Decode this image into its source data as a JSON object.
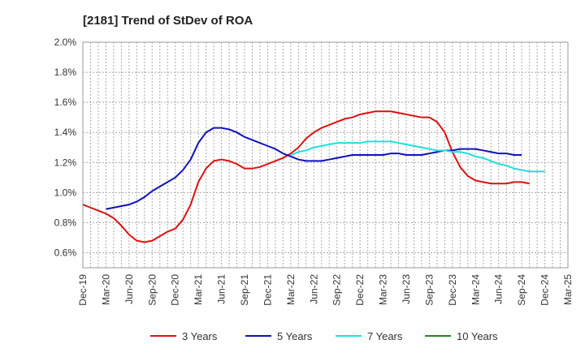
{
  "chart_data": {
    "type": "line",
    "title": "[2181]  Trend of StDev of ROA",
    "xlabel": "",
    "ylabel": "",
    "x_tick_labels": [
      "Dec-19",
      "Mar-20",
      "Jun-20",
      "Sep-20",
      "Dec-20",
      "Mar-21",
      "Jun-21",
      "Sep-21",
      "Dec-21",
      "Mar-22",
      "Jun-22",
      "Sep-22",
      "Dec-22",
      "Mar-23",
      "Jun-23",
      "Sep-23",
      "Dec-23",
      "Mar-24",
      "Jun-24",
      "Sep-24",
      "Dec-24",
      "Mar-25"
    ],
    "y_tick_labels": [
      "0.6%",
      "0.8%",
      "1.0%",
      "1.2%",
      "1.4%",
      "1.6%",
      "1.8%",
      "2.0%"
    ],
    "ylim": [
      0.5,
      2.0
    ],
    "grid": true,
    "legend_position": "bottom",
    "series": [
      {
        "name": "3 Years",
        "color": "#dd1111",
        "start_month_index": 0,
        "values": [
          0.92,
          0.9,
          0.88,
          0.86,
          0.83,
          0.78,
          0.72,
          0.68,
          0.67,
          0.68,
          0.71,
          0.74,
          0.76,
          0.82,
          0.92,
          1.07,
          1.16,
          1.21,
          1.22,
          1.21,
          1.19,
          1.16,
          1.16,
          1.17,
          1.19,
          1.21,
          1.23,
          1.26,
          1.3,
          1.36,
          1.4,
          1.43,
          1.45,
          1.47,
          1.49,
          1.5,
          1.52,
          1.53,
          1.54,
          1.54,
          1.54,
          1.53,
          1.52,
          1.51,
          1.5,
          1.5,
          1.47,
          1.4,
          1.27,
          1.17,
          1.11,
          1.08,
          1.07,
          1.06,
          1.06,
          1.06,
          1.07,
          1.07,
          1.06
        ]
      },
      {
        "name": "5 Years",
        "color": "#1111bb",
        "start_month_index": 3,
        "values": [
          0.89,
          0.9,
          0.91,
          0.92,
          0.94,
          0.97,
          1.01,
          1.04,
          1.07,
          1.1,
          1.15,
          1.22,
          1.33,
          1.4,
          1.43,
          1.43,
          1.42,
          1.4,
          1.37,
          1.35,
          1.33,
          1.31,
          1.29,
          1.26,
          1.24,
          1.22,
          1.21,
          1.21,
          1.21,
          1.22,
          1.23,
          1.24,
          1.25,
          1.25,
          1.25,
          1.25,
          1.25,
          1.26,
          1.26,
          1.25,
          1.25,
          1.25,
          1.26,
          1.27,
          1.28,
          1.28,
          1.29,
          1.29,
          1.29,
          1.28,
          1.27,
          1.26,
          1.26,
          1.25,
          1.25
        ]
      },
      {
        "name": "7 Years",
        "color": "#22dddd",
        "start_month_index": 27,
        "values": [
          1.25,
          1.27,
          1.28,
          1.3,
          1.31,
          1.32,
          1.33,
          1.33,
          1.33,
          1.33,
          1.34,
          1.34,
          1.34,
          1.34,
          1.33,
          1.32,
          1.31,
          1.3,
          1.29,
          1.28,
          1.28,
          1.27,
          1.27,
          1.26,
          1.24,
          1.23,
          1.21,
          1.19,
          1.18,
          1.16,
          1.15,
          1.14,
          1.14,
          1.14
        ]
      },
      {
        "name": "10 Years",
        "color": "#228822",
        "start_month_index": 0,
        "values": []
      }
    ]
  }
}
